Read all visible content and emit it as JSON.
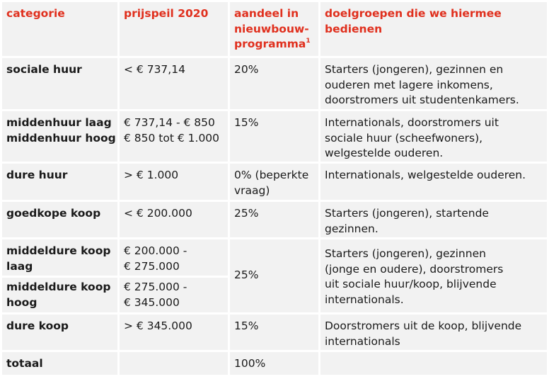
{
  "header": {
    "categorie": "categorie",
    "prijspeil": "prijspeil 2020",
    "aandeel_l1": "aandeel in",
    "aandeel_l2": "nieuwbouw-",
    "aandeel_l3": "programma",
    "aandeel_note": "1",
    "doel_l1": "doelgroepen die we hiermee",
    "doel_l2": "bedienen"
  },
  "rows": {
    "sociale": {
      "cat": "sociale huur",
      "prijs": "< € 737,14",
      "aandeel": "20%",
      "doel": [
        "Starters (jongeren), gezinnen en",
        "ouderen met lagere inkomens,",
        "doorstromers uit studentenkamers."
      ]
    },
    "midden": {
      "cat": [
        "middenhuur laag",
        "middenhuur hoog"
      ],
      "prijs": [
        "€ 737,14 - € 850",
        "€ 850 tot € 1.000"
      ],
      "aandeel": "15%",
      "doel": [
        "Internationals, doorstromers uit",
        "sociale huur (scheefwoners),",
        "welgestelde ouderen."
      ]
    },
    "dure_huur": {
      "cat": "dure huur",
      "prijs": "> € 1.000",
      "aandeel": [
        "0% (beperkte",
        "vraag)"
      ],
      "doel": "Internationals, welgestelde ouderen."
    },
    "goedkope": {
      "cat": "goedkope koop",
      "prijs": "< € 200.000",
      "aandeel": "25%",
      "doel": [
        "Starters (jongeren), startende",
        "gezinnen."
      ]
    },
    "middeldure": {
      "cat_laag": [
        "middeldure koop",
        "laag"
      ],
      "prijs_laag": [
        "€ 200.000 -",
        "€ 275.000"
      ],
      "cat_hoog": [
        "middeldure koop",
        "hoog"
      ],
      "prijs_hoog": [
        "€ 275.000 -",
        "€ 345.000"
      ],
      "aandeel": "25%",
      "doel": [
        "Starters (jongeren), gezinnen",
        "(jonge en oudere), doorstromers",
        "uit sociale huur/koop, blijvende",
        "internationals."
      ]
    },
    "dure_koop": {
      "cat": "dure koop",
      "prijs": "> € 345.000",
      "aandeel": "15%",
      "doel": [
        "Doorstromers uit de koop, blijvende",
        "internationals"
      ]
    },
    "totaal": {
      "cat": "totaal",
      "aandeel": "100%"
    }
  },
  "colors": {
    "header_text": "#e0301e",
    "cell_bg": "#f2f2f2",
    "grid": "#ffffff"
  }
}
